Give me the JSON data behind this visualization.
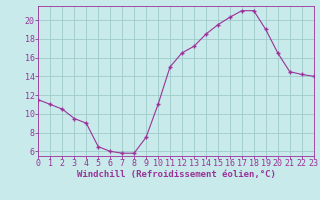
{
  "x": [
    0,
    1,
    2,
    3,
    4,
    5,
    6,
    7,
    8,
    9,
    10,
    11,
    12,
    13,
    14,
    15,
    16,
    17,
    18,
    19,
    20,
    21,
    22,
    23
  ],
  "y": [
    11.5,
    11.0,
    10.5,
    9.5,
    9.0,
    6.5,
    6.0,
    5.8,
    5.8,
    7.5,
    11.0,
    15.0,
    16.5,
    17.2,
    18.5,
    19.5,
    20.3,
    21.0,
    21.0,
    19.0,
    16.5,
    14.5,
    14.2,
    14.0
  ],
  "xlim": [
    0,
    23
  ],
  "ylim": [
    5.5,
    21.5
  ],
  "yticks": [
    6,
    8,
    10,
    12,
    14,
    16,
    18,
    20
  ],
  "xticks": [
    0,
    1,
    2,
    3,
    4,
    5,
    6,
    7,
    8,
    9,
    10,
    11,
    12,
    13,
    14,
    15,
    16,
    17,
    18,
    19,
    20,
    21,
    22,
    23
  ],
  "xlabel": "Windchill (Refroidissement éolien,°C)",
  "line_color": "#993399",
  "marker_color": "#993399",
  "bg_color": "#c8eaea",
  "grid_color": "#a0cccc",
  "tick_label_color": "#993399",
  "axis_color": "#993399",
  "font_size_xlabel": 6.5,
  "font_size_ticks": 6.0
}
